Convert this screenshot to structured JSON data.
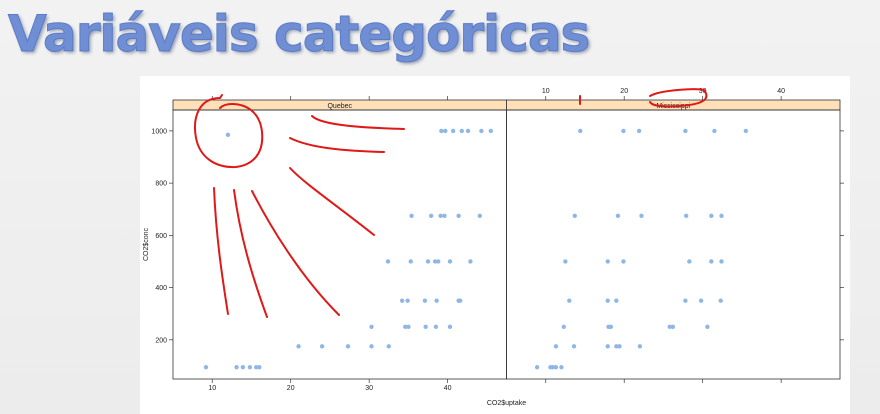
{
  "slide": {
    "title": "Variáveis categóricas"
  },
  "chart_data": {
    "type": "scatter",
    "title": "",
    "xlabel": "CO2$uptake",
    "ylabel": "CO2$conc",
    "xlim": [
      5,
      47.5
    ],
    "ylim": [
      50,
      1080
    ],
    "xticks": [
      10,
      20,
      30,
      40
    ],
    "yticks": [
      200,
      400,
      600,
      800,
      1000
    ],
    "point_color": "#8fb7e6",
    "strip_color": "#ffe0b8",
    "grid": false,
    "panels": [
      {
        "name": "Quebec",
        "x_tick_side": "bottom",
        "y_tick_side": "left",
        "points": [
          {
            "x": 9.2,
            "y": 95
          },
          {
            "x": 13.1,
            "y": 95
          },
          {
            "x": 13.9,
            "y": 95
          },
          {
            "x": 14.8,
            "y": 95
          },
          {
            "x": 15.6,
            "y": 95
          },
          {
            "x": 16.0,
            "y": 95
          },
          {
            "x": 21.0,
            "y": 175
          },
          {
            "x": 24.0,
            "y": 175
          },
          {
            "x": 27.3,
            "y": 175
          },
          {
            "x": 30.3,
            "y": 175
          },
          {
            "x": 32.5,
            "y": 175
          },
          {
            "x": 30.3,
            "y": 250
          },
          {
            "x": 34.6,
            "y": 250
          },
          {
            "x": 35.0,
            "y": 250
          },
          {
            "x": 37.2,
            "y": 250
          },
          {
            "x": 38.5,
            "y": 250
          },
          {
            "x": 40.3,
            "y": 250
          },
          {
            "x": 34.2,
            "y": 350
          },
          {
            "x": 34.9,
            "y": 350
          },
          {
            "x": 37.1,
            "y": 350
          },
          {
            "x": 38.6,
            "y": 350
          },
          {
            "x": 41.4,
            "y": 350
          },
          {
            "x": 41.6,
            "y": 350
          },
          {
            "x": 32.4,
            "y": 500
          },
          {
            "x": 35.3,
            "y": 500
          },
          {
            "x": 37.5,
            "y": 500
          },
          {
            "x": 38.4,
            "y": 500
          },
          {
            "x": 38.8,
            "y": 500
          },
          {
            "x": 40.3,
            "y": 500
          },
          {
            "x": 42.9,
            "y": 500
          },
          {
            "x": 35.4,
            "y": 675
          },
          {
            "x": 37.9,
            "y": 675
          },
          {
            "x": 39.1,
            "y": 675
          },
          {
            "x": 39.6,
            "y": 675
          },
          {
            "x": 41.4,
            "y": 675
          },
          {
            "x": 44.1,
            "y": 675
          },
          {
            "x": 12.0,
            "y": 985
          },
          {
            "x": 39.2,
            "y": 1000
          },
          {
            "x": 39.7,
            "y": 1000
          },
          {
            "x": 40.7,
            "y": 1000
          },
          {
            "x": 41.8,
            "y": 1000
          },
          {
            "x": 42.6,
            "y": 1000
          },
          {
            "x": 44.3,
            "y": 1000
          },
          {
            "x": 45.5,
            "y": 1000
          }
        ]
      },
      {
        "name": "Mississippi",
        "x_tick_side": "top",
        "y_tick_side": "right",
        "points": [
          {
            "x": 8.9,
            "y": 95
          },
          {
            "x": 10.6,
            "y": 95
          },
          {
            "x": 10.9,
            "y": 95
          },
          {
            "x": 11.3,
            "y": 95
          },
          {
            "x": 12.0,
            "y": 95
          },
          {
            "x": 11.3,
            "y": 175
          },
          {
            "x": 13.6,
            "y": 175
          },
          {
            "x": 17.9,
            "y": 175
          },
          {
            "x": 19.0,
            "y": 175
          },
          {
            "x": 19.4,
            "y": 175
          },
          {
            "x": 22.0,
            "y": 175
          },
          {
            "x": 12.3,
            "y": 250
          },
          {
            "x": 18.0,
            "y": 250
          },
          {
            "x": 18.3,
            "y": 250
          },
          {
            "x": 25.8,
            "y": 250
          },
          {
            "x": 26.2,
            "y": 250
          },
          {
            "x": 30.6,
            "y": 250
          },
          {
            "x": 13.0,
            "y": 350
          },
          {
            "x": 17.9,
            "y": 350
          },
          {
            "x": 19.0,
            "y": 350
          },
          {
            "x": 27.8,
            "y": 350
          },
          {
            "x": 29.8,
            "y": 350
          },
          {
            "x": 32.3,
            "y": 350
          },
          {
            "x": 12.5,
            "y": 500
          },
          {
            "x": 17.9,
            "y": 500
          },
          {
            "x": 19.9,
            "y": 500
          },
          {
            "x": 28.3,
            "y": 500
          },
          {
            "x": 31.1,
            "y": 500
          },
          {
            "x": 32.4,
            "y": 500
          },
          {
            "x": 13.7,
            "y": 675
          },
          {
            "x": 19.2,
            "y": 675
          },
          {
            "x": 22.2,
            "y": 675
          },
          {
            "x": 27.9,
            "y": 675
          },
          {
            "x": 31.1,
            "y": 675
          },
          {
            "x": 32.4,
            "y": 675
          },
          {
            "x": 14.4,
            "y": 1000
          },
          {
            "x": 19.9,
            "y": 1000
          },
          {
            "x": 21.9,
            "y": 1000
          },
          {
            "x": 27.8,
            "y": 1000
          },
          {
            "x": 31.5,
            "y": 1000
          },
          {
            "x": 35.5,
            "y": 1000
          }
        ]
      }
    ]
  }
}
